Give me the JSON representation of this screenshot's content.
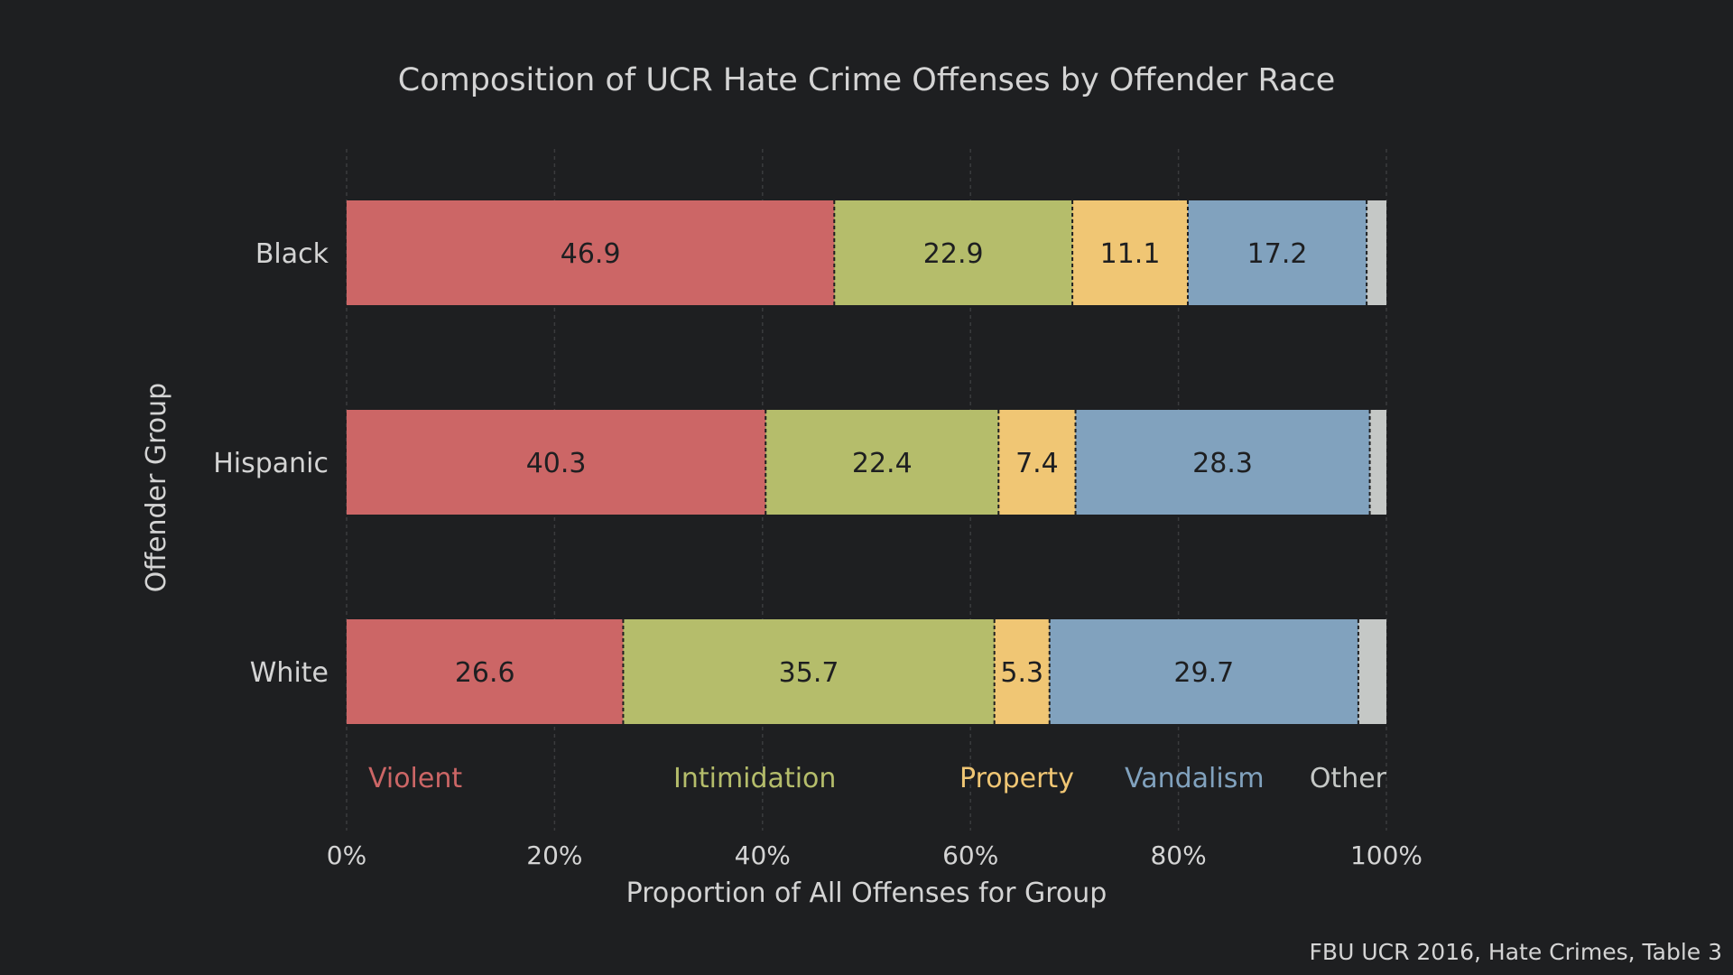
{
  "chart_data": {
    "type": "bar",
    "orientation": "horizontal",
    "stacked": true,
    "title": "Composition of UCR Hate Crime Offenses by Offender Race",
    "xlabel": "Proportion of All Offenses for Group",
    "ylabel": "Offender Group",
    "xlim": [
      0,
      100
    ],
    "x_ticks": [
      "0%",
      "20%",
      "40%",
      "60%",
      "80%",
      "100%"
    ],
    "x_tick_values": [
      0,
      20,
      40,
      60,
      80,
      100
    ],
    "grid": true,
    "categories": [
      "Black",
      "Hispanic",
      "White"
    ],
    "series": [
      {
        "name": "Violent",
        "color": "#cc6666",
        "values": [
          46.9,
          40.3,
          26.6
        ],
        "labels": [
          "46.9",
          "40.3",
          "26.6"
        ]
      },
      {
        "name": "Intimidation",
        "color": "#b5bd6b",
        "values": [
          22.9,
          22.4,
          35.7
        ],
        "labels": [
          "22.9",
          "22.4",
          "35.7"
        ]
      },
      {
        "name": "Property",
        "color": "#f0c674",
        "values": [
          11.1,
          7.4,
          5.3
        ],
        "labels": [
          "11.1",
          "7.4",
          "5.3"
        ]
      },
      {
        "name": "Vandalism",
        "color": "#81a2be",
        "values": [
          17.2,
          28.3,
          29.7
        ],
        "labels": [
          "17.2",
          "28.3",
          "29.7"
        ]
      },
      {
        "name": "Other",
        "color": "#c5c8c6",
        "values": [
          1.9,
          1.6,
          2.7
        ],
        "labels": [
          "",
          "",
          ""
        ]
      }
    ],
    "legend_placement": "below-bars",
    "source": "FBU UCR 2016, Hate Crimes, Table 3"
  },
  "colors": {
    "background": "#1e1f21",
    "text": "#d4d4d4",
    "grid": "#3a3b3d",
    "data_label": "#1e1f21"
  }
}
